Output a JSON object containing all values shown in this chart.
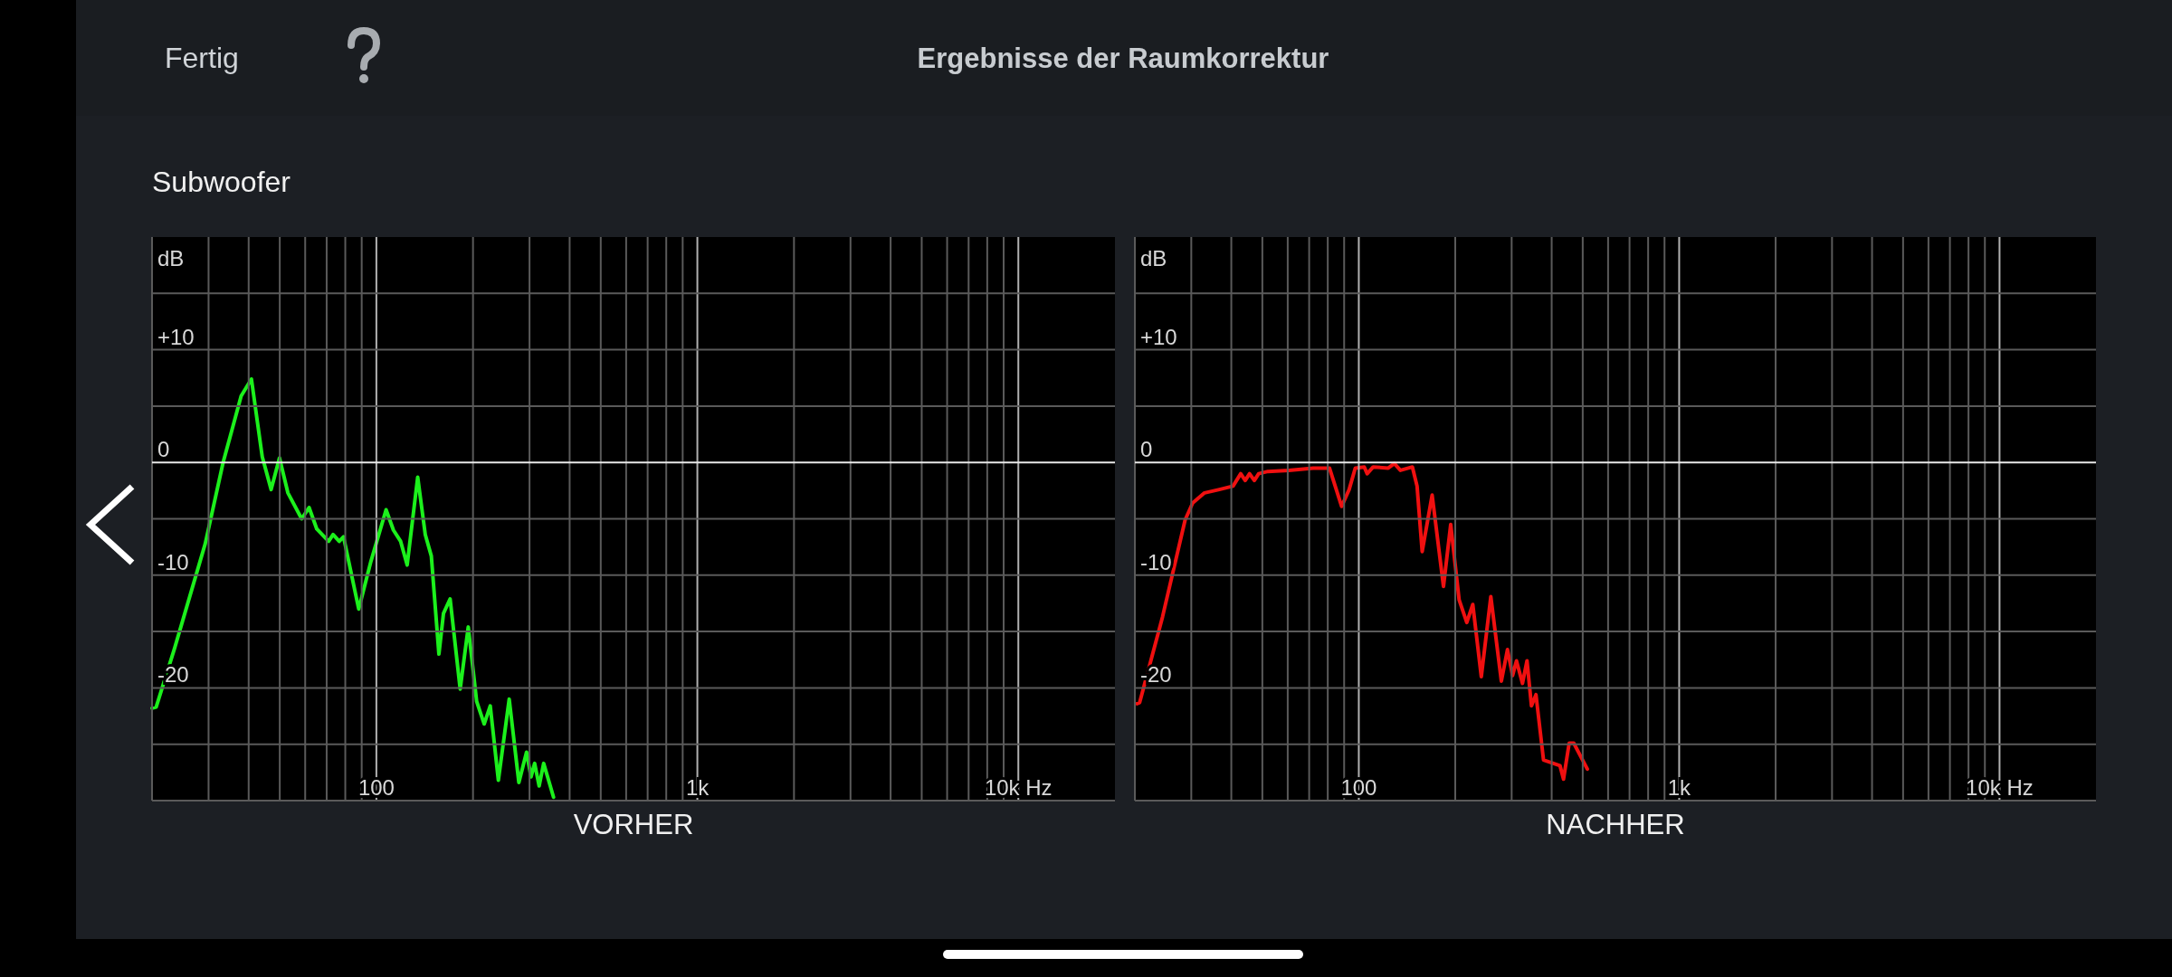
{
  "chart_data": [
    {
      "type": "line",
      "title": "VORHER",
      "ylabel": "dB",
      "log": "x",
      "grid": true,
      "annotations": [
        "Fertig",
        "Ergebnisse der Raumkorrektur",
        "Subwoofer"
      ],
      "xlim": [
        20,
        20000
      ],
      "ylim": [
        -30,
        20
      ],
      "xticks": [
        {
          "value": 20,
          "label": null
        },
        {
          "value": 30,
          "label": null
        },
        {
          "value": 40,
          "label": null
        },
        {
          "value": 50,
          "label": null
        },
        {
          "value": 60,
          "label": null
        },
        {
          "value": 70,
          "label": null
        },
        {
          "value": 80,
          "label": null
        },
        {
          "value": 90,
          "label": null
        },
        100,
        {
          "value": 200,
          "label": null
        },
        {
          "value": 300,
          "label": null
        },
        {
          "value": 400,
          "label": null
        },
        {
          "value": 500,
          "label": null
        },
        {
          "value": 600,
          "label": null
        },
        {
          "value": 700,
          "label": null
        },
        {
          "value": 800,
          "label": null
        },
        {
          "value": 900,
          "label": null
        },
        {
          "value": 1000,
          "label": "1k"
        },
        {
          "value": 2000,
          "label": null
        },
        {
          "value": 3000,
          "label": null
        },
        {
          "value": 4000,
          "label": null
        },
        {
          "value": 5000,
          "label": null
        },
        {
          "value": 6000,
          "label": null
        },
        {
          "value": 7000,
          "label": null
        },
        {
          "value": 8000,
          "label": null
        },
        {
          "value": 9000,
          "label": null
        },
        {
          "value": 10000,
          "label": "10k Hz"
        }
      ],
      "yticks": [
        {
          "value": 15,
          "label": null
        },
        {
          "value": 10,
          "label": "+10"
        },
        {
          "value": 5,
          "label": null
        },
        0,
        {
          "value": -5,
          "label": null
        },
        -10,
        {
          "value": -15,
          "label": null
        },
        -20,
        {
          "value": -25,
          "label": null
        }
      ],
      "series": [
        {
          "color": "#1cf01c",
          "x": [
            20,
            20.6,
            23.5,
            29.3,
            33.3,
            35.5,
            37.9,
            40.8,
            44.1,
            47,
            49.9,
            53,
            58.5,
            61.7,
            65.2,
            71,
            73.3,
            76.6,
            79,
            88.1,
            96.1,
            107.2,
            113,
            119,
            124.7,
            134.5,
            142,
            148.3,
            156.6,
            161.8,
            169.7,
            182.4,
            193.3,
            205.3,
            216.7,
            226.3,
            239.9,
            259.3,
            277.9,
            293.6,
            303.3,
            311.2,
            321.4,
            332,
            356.4
          ],
          "values": [
            -21.8,
            -21.7,
            -16.5,
            -7.2,
            0,
            2.9,
            5.9,
            7.4,
            0.5,
            -2.4,
            0.4,
            -2.7,
            -5,
            -4,
            -5.9,
            -7,
            -6.4,
            -7,
            -6.6,
            -13,
            -8.8,
            -4.2,
            -6,
            -7,
            -9.1,
            -1.3,
            -6.4,
            -8.3,
            -17,
            -13.4,
            -12.1,
            -20.1,
            -14.6,
            -21.2,
            -23.2,
            -21.6,
            -28.2,
            -21,
            -28.4,
            -25.7,
            -27.9,
            -26.7,
            -28.7,
            -26.7,
            -29.7
          ]
        }
      ]
    },
    {
      "type": "line",
      "title": "NACHHER",
      "ylabel": "dB",
      "log": "x",
      "grid": true,
      "xlim": [
        20,
        20000
      ],
      "ylim": [
        -30,
        20
      ],
      "xticks": [
        {
          "value": 20,
          "label": null
        },
        {
          "value": 30,
          "label": null
        },
        {
          "value": 40,
          "label": null
        },
        {
          "value": 50,
          "label": null
        },
        {
          "value": 60,
          "label": null
        },
        {
          "value": 70,
          "label": null
        },
        {
          "value": 80,
          "label": null
        },
        {
          "value": 90,
          "label": null
        },
        100,
        {
          "value": 200,
          "label": null
        },
        {
          "value": 300,
          "label": null
        },
        {
          "value": 400,
          "label": null
        },
        {
          "value": 500,
          "label": null
        },
        {
          "value": 600,
          "label": null
        },
        {
          "value": 700,
          "label": null
        },
        {
          "value": 800,
          "label": null
        },
        {
          "value": 900,
          "label": null
        },
        {
          "value": 1000,
          "label": "1k"
        },
        {
          "value": 2000,
          "label": null
        },
        {
          "value": 3000,
          "label": null
        },
        {
          "value": 4000,
          "label": null
        },
        {
          "value": 5000,
          "label": null
        },
        {
          "value": 6000,
          "label": null
        },
        {
          "value": 7000,
          "label": null
        },
        {
          "value": 8000,
          "label": null
        },
        {
          "value": 9000,
          "label": null
        },
        {
          "value": 10000,
          "label": "10k Hz"
        }
      ],
      "yticks": [
        {
          "value": 15,
          "label": null
        },
        {
          "value": 10,
          "label": "+10"
        },
        {
          "value": 5,
          "label": null
        },
        0,
        {
          "value": -5,
          "label": null
        },
        -10,
        {
          "value": -15,
          "label": null
        },
        -20,
        {
          "value": -25,
          "label": null
        }
      ],
      "series": [
        {
          "color": "#f01010",
          "x": [
            20.3,
            20.7,
            24.4,
            28.7,
            30.3,
            33,
            36.7,
            40.5,
            42.8,
            44.2,
            45.6,
            47.2,
            48.7,
            52,
            60.5,
            72,
            81,
            88.4,
            93.3,
            97.5,
            104,
            106.2,
            110.9,
            123.6,
            129.1,
            134.9,
            147,
            152,
            157.7,
            169.4,
            183.8,
            193.6,
            205.7,
            217.3,
            226.9,
            241.2,
            258.3,
            278.6,
            291.1,
            302,
            310.6,
            324.3,
            335,
            345.9,
            357.3,
            377.2,
            424.6,
            435.5,
            453.6,
            468.8,
            516.8
          ],
          "values": [
            -21.4,
            -21.3,
            -13.7,
            -5.1,
            -3.6,
            -2.7,
            -2.4,
            -2.1,
            -1,
            -1.6,
            -1,
            -1.6,
            -1,
            -0.8,
            -0.7,
            -0.5,
            -0.5,
            -3.9,
            -2.4,
            -0.5,
            -0.4,
            -1,
            -0.4,
            -0.5,
            -0.1,
            -0.7,
            -0.4,
            -2.1,
            -7.9,
            -2.9,
            -11,
            -5.5,
            -12.2,
            -14.2,
            -12.6,
            -19,
            -11.9,
            -19.4,
            -16.6,
            -18.9,
            -17.6,
            -19.6,
            -17.6,
            -21.6,
            -20.6,
            -26.4,
            -26.9,
            -28.1,
            -24.9,
            -24.9,
            -27.2
          ]
        }
      ]
    }
  ]
}
